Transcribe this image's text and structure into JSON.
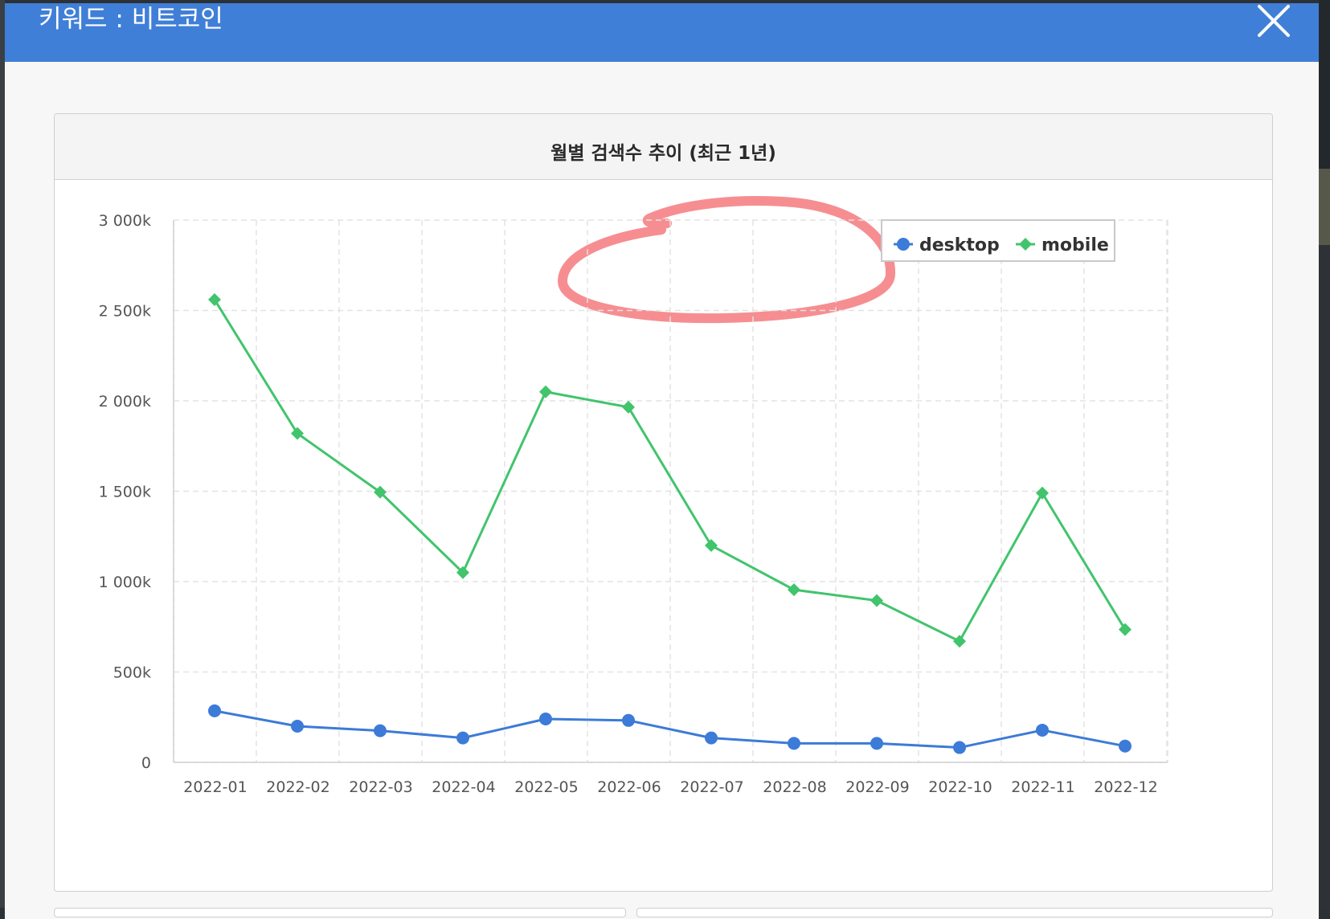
{
  "modal": {
    "title": "키워드 : 비트코인",
    "close_label": "close"
  },
  "panel": {
    "title": "월별 검색수 추이 (최근 1년)"
  },
  "colors": {
    "header": "#407fd7",
    "desktop": "#3c7bd7",
    "mobile": "#41c46c",
    "annotation": "#f47a7e"
  },
  "chart_data": {
    "type": "line",
    "title": "월별 검색수 추이 (최근 1년)",
    "categories": [
      "2022-01",
      "2022-02",
      "2022-03",
      "2022-04",
      "2022-05",
      "2022-06",
      "2022-07",
      "2022-08",
      "2022-09",
      "2022-10",
      "2022-11",
      "2022-12"
    ],
    "series": [
      {
        "name": "desktop",
        "marker": "circle",
        "color": "#3c7bd7",
        "values": [
          285000,
          200000,
          175000,
          135000,
          240000,
          232000,
          135000,
          105000,
          105000,
          82000,
          178000,
          90000
        ]
      },
      {
        "name": "mobile",
        "marker": "diamond",
        "color": "#41c46c",
        "values": [
          2560000,
          1820000,
          1495000,
          1050000,
          2050000,
          1965000,
          1200000,
          955000,
          895000,
          670000,
          1490000,
          735000
        ]
      }
    ],
    "ylim": [
      0,
      3000000
    ],
    "yticks": [
      {
        "value": 0,
        "label": "0"
      },
      {
        "value": 500000,
        "label": "500k"
      },
      {
        "value": 1000000,
        "label": "1 000k"
      },
      {
        "value": 1500000,
        "label": "1 500k"
      },
      {
        "value": 2000000,
        "label": "2 000k"
      },
      {
        "value": 2500000,
        "label": "2 500k"
      },
      {
        "value": 3000000,
        "label": "3 000k"
      }
    ],
    "xlabel": "",
    "ylabel": "",
    "grid": true,
    "legend": "top-right"
  }
}
